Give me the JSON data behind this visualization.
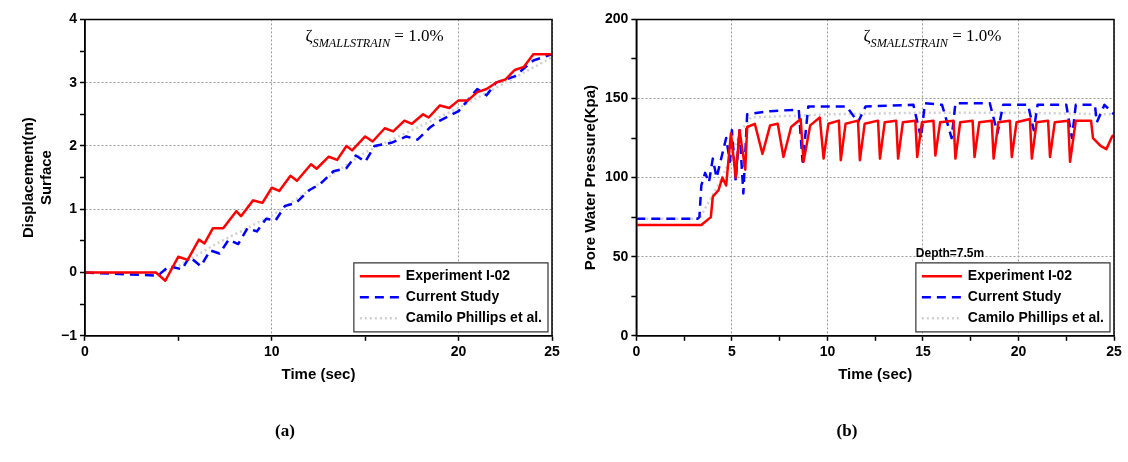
{
  "chart_data": [
    {
      "type": "line",
      "title": "(a)",
      "xlabel": "Time (sec)",
      "ylabel": "Displacement(m)\nSurface",
      "annotations": [
        "ζ$_{SMALLSTRAIN}$ = 1.0%"
      ],
      "xlim": [
        0,
        25
      ],
      "ylim": [
        -1,
        4
      ],
      "xticks": [
        0,
        {
          "value": 5,
          "label": null
        },
        10,
        {
          "value": 15,
          "label": null
        },
        20,
        25
      ],
      "yticks": [
        {
          "value": -1,
          "label": "−1"
        },
        {
          "value": -0.5,
          "label": null
        },
        0,
        {
          "value": 0.5,
          "label": null
        },
        1,
        {
          "value": 1.5,
          "label": null
        },
        2,
        {
          "value": 2.5,
          "label": null
        },
        3,
        {
          "value": 3.5,
          "label": null
        },
        4
      ],
      "grid": true,
      "legend": "bottom right",
      "marker": "none",
      "series": [
        {
          "name": "Experiment I-02",
          "color": "#ff0000",
          "line_style": "solid",
          "x": [
            0,
            3.8,
            4.3,
            5.0,
            5.5,
            6.1,
            6.4,
            6.85,
            7.4,
            8.1,
            8.35,
            9.0,
            9.5,
            10.0,
            10.4,
            11.0,
            11.35,
            12.1,
            12.4,
            13.05,
            13.5,
            14.0,
            14.3,
            15.0,
            15.4,
            16.05,
            16.5,
            17.1,
            17.5,
            18.1,
            18.4,
            19.0,
            19.5,
            20,
            20.5,
            21,
            21.5,
            22,
            22.5,
            23,
            23.5,
            24,
            25
          ],
          "values": [
            0,
            0,
            -0.13,
            0.25,
            0.2,
            0.52,
            0.46,
            0.7,
            0.7,
            0.97,
            0.89,
            1.14,
            1.1,
            1.34,
            1.29,
            1.53,
            1.45,
            1.71,
            1.64,
            1.83,
            1.78,
            2.0,
            1.93,
            2.15,
            2.07,
            2.28,
            2.23,
            2.4,
            2.35,
            2.5,
            2.45,
            2.64,
            2.6,
            2.72,
            2.72,
            2.85,
            2.9,
            3.0,
            3.05,
            3.2,
            3.25,
            3.45,
            3.45
          ]
        },
        {
          "name": "Current Study",
          "color": "#0000ff",
          "line_style": "dashed",
          "x": [
            0,
            3.9,
            4.5,
            5.2,
            5.6,
            6.2,
            6.7,
            7.2,
            7.7,
            8.2,
            8.7,
            9.2,
            9.7,
            10.2,
            10.7,
            11.3,
            12,
            12.6,
            13.3,
            14,
            14.5,
            15,
            15.5,
            16.4,
            17.2,
            17.8,
            18.5,
            19,
            20,
            21,
            21.5,
            22,
            23,
            24,
            25
          ],
          "values": [
            0,
            -0.05,
            0.1,
            0.05,
            0.25,
            0.1,
            0.35,
            0.3,
            0.52,
            0.45,
            0.7,
            0.65,
            0.85,
            0.82,
            1.05,
            1.1,
            1.3,
            1.4,
            1.6,
            1.65,
            1.85,
            1.75,
            2.0,
            2.05,
            2.15,
            2.1,
            2.3,
            2.4,
            2.55,
            2.9,
            2.8,
            3.0,
            3.1,
            3.35,
            3.45
          ]
        },
        {
          "name": "Camilo Phillips et al.",
          "color": "#d0d0d0",
          "line_style": "dotted",
          "x": [
            0,
            4,
            5,
            7,
            10,
            15,
            20,
            25
          ],
          "values": [
            0,
            0,
            0.1,
            0.45,
            0.9,
            1.9,
            2.6,
            3.4
          ]
        }
      ]
    },
    {
      "type": "line",
      "title": "(b)",
      "xlabel": "Time (sec)",
      "ylabel": "Pore Water Pressure(Kpa)",
      "annotations": [
        "ζ$_{SMALLSTRAIN}$ = 1.0%"
      ],
      "xlim": [
        0,
        25
      ],
      "ylim": [
        0,
        200
      ],
      "xticks": [
        0,
        {
          "value": 2.5,
          "label": null
        },
        5,
        {
          "value": 7.5,
          "label": null
        },
        10,
        {
          "value": 12.5,
          "label": null
        },
        15,
        {
          "value": 17.5,
          "label": null
        },
        20,
        {
          "value": 22.5,
          "label": null
        },
        25
      ],
      "yticks": [
        0,
        {
          "value": 25,
          "label": null
        },
        50,
        {
          "value": 75,
          "label": null
        },
        100,
        {
          "value": 125,
          "label": null
        },
        150,
        {
          "value": 175,
          "label": null
        },
        200
      ],
      "grid": true,
      "legend": "bottom right",
      "legend_title": "Depth=7.5m",
      "marker": "none",
      "series": [
        {
          "name": "Experiment I-02",
          "color": "#ff0000",
          "line_style": "solid",
          "x": [
            0,
            3.4,
            3.9,
            4.0,
            4.3,
            4.5,
            4.7,
            4.95,
            5.2,
            5.4,
            5.7,
            5.8,
            6.2,
            6.6,
            7.0,
            7.4,
            7.7,
            8.1,
            8.6,
            8.75,
            9.1,
            9.6,
            9.8,
            10.05,
            10.6,
            10.7,
            10.95,
            11.6,
            11.7,
            11.95,
            12.65,
            12.75,
            13.0,
            13.6,
            13.7,
            13.95,
            14.6,
            14.7,
            14.95,
            15.55,
            15.65,
            15.9,
            16.6,
            16.7,
            16.95,
            17.6,
            17.7,
            17.95,
            18.6,
            18.7,
            18.95,
            19.55,
            19.65,
            19.9,
            20.6,
            20.7,
            20.95,
            21.55,
            21.65,
            21.9,
            22.6,
            22.7,
            23.0,
            23.8,
            23.9,
            24.3,
            24.6,
            24.9,
            25
          ],
          "values": [
            70,
            70,
            75,
            88,
            92,
            100,
            95,
            128,
            100,
            130,
            105,
            132,
            134,
            115,
            133,
            134,
            113,
            132,
            137,
            110,
            133,
            138,
            112,
            134,
            136,
            111,
            134,
            136,
            111,
            134,
            136,
            112,
            135,
            136,
            112,
            135,
            136,
            113,
            135,
            136,
            114,
            135,
            136,
            112,
            135,
            136,
            113,
            135,
            136,
            112,
            135,
            136,
            113,
            135,
            137,
            112,
            135,
            136,
            113,
            135,
            136,
            110,
            136,
            136,
            125,
            120,
            118,
            126,
            127
          ]
        },
        {
          "name": "Current Study",
          "color": "#0000ff",
          "line_style": "dashed",
          "x": [
            0,
            3.2,
            3.3,
            3.4,
            3.6,
            3.8,
            4.0,
            4.2,
            4.7,
            4.9,
            5.0,
            5.2,
            5.4,
            5.6,
            5.8,
            7,
            8.5,
            8.7,
            9.0,
            11,
            11.6,
            12,
            14.5,
            14.9,
            15.1,
            16,
            16.5,
            16.7,
            18.5,
            18.9,
            19.2,
            20.5,
            20.8,
            21,
            22.5,
            22.8,
            23,
            24,
            24.1,
            24.5,
            25
          ],
          "values": [
            74,
            74,
            75,
            95,
            103,
            97,
            112,
            100,
            125,
            110,
            130,
            98,
            130,
            90,
            140,
            142,
            143,
            110,
            145,
            145,
            135,
            145,
            146,
            125,
            147,
            146,
            125,
            147,
            147,
            128,
            146,
            146,
            130,
            146,
            146,
            125,
            146,
            146,
            135,
            146,
            140
          ]
        },
        {
          "name": "Camilo Phillips et al.",
          "color": "#d0d0d0",
          "line_style": "dotted",
          "x": [
            0,
            3.3,
            4.5,
            5.5,
            6,
            10,
            15,
            20,
            25
          ],
          "values": [
            74,
            74,
            100,
            130,
            138,
            140,
            141,
            141,
            140
          ]
        }
      ]
    }
  ]
}
